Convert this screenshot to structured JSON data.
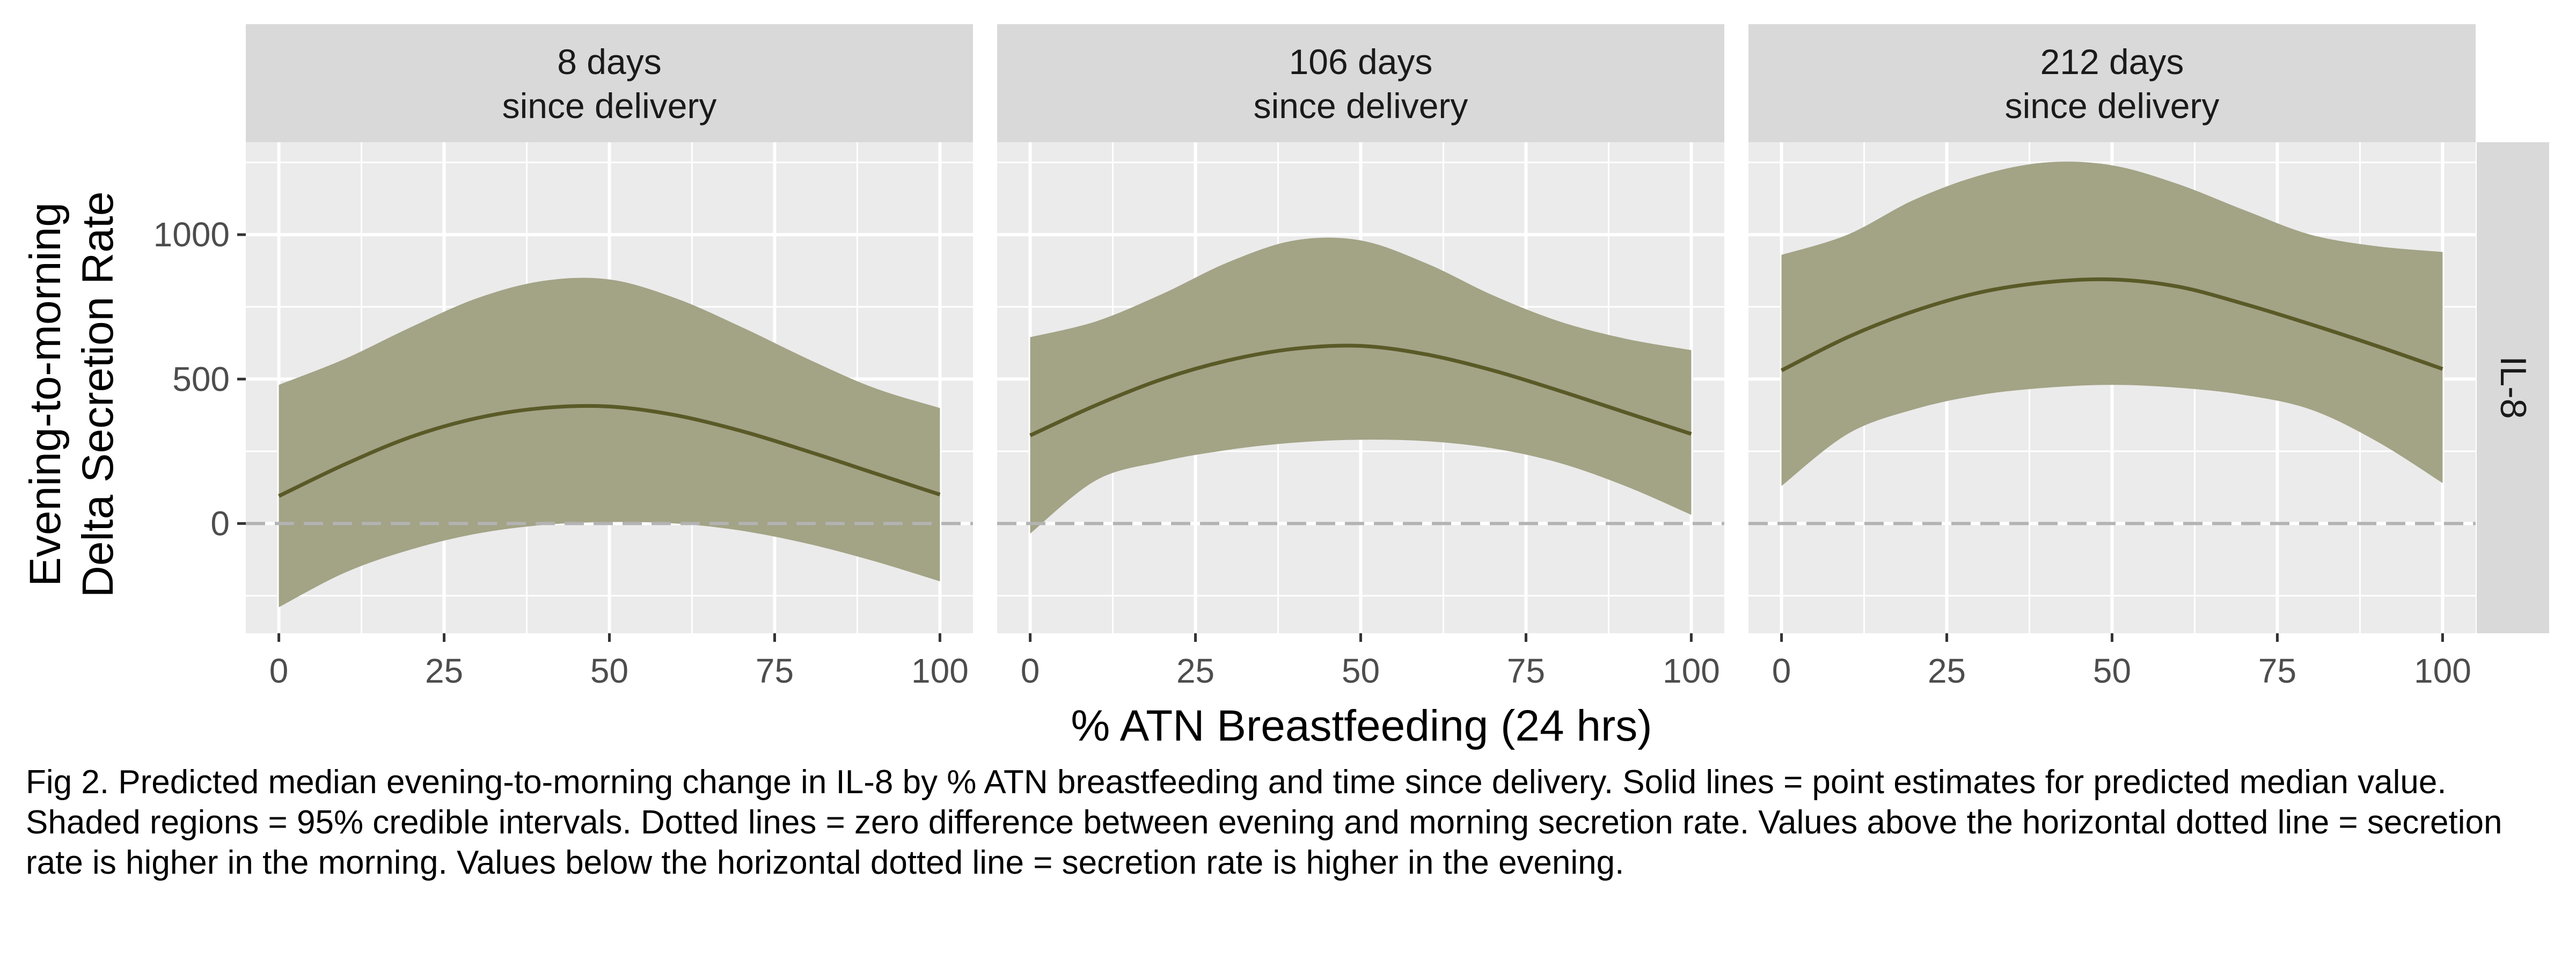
{
  "chart_data": {
    "type": "line",
    "facets": [
      {
        "label_line1": "8 days",
        "label_line2": "since delivery"
      },
      {
        "label_line1": "106 days",
        "label_line2": "since delivery"
      },
      {
        "label_line1": "212 days",
        "label_line2": "since delivery"
      }
    ],
    "row_strip": "IL-8",
    "xlabel": "% ATN Breastfeeding (24 hrs)",
    "ylabel_line1": "Evening-to-morning",
    "ylabel_line2": "Delta Secretion Rate",
    "x_ticks": [
      0,
      25,
      50,
      75,
      100
    ],
    "y_ticks": [
      0,
      500,
      1000
    ],
    "xlim": [
      -5,
      105
    ],
    "ylim": [
      -380,
      1320
    ],
    "reference_line_y": 0,
    "x": [
      0,
      10,
      20,
      30,
      40,
      50,
      60,
      70,
      80,
      90,
      100
    ],
    "series": [
      {
        "median": [
          95,
          205,
          300,
          365,
          400,
          405,
          375,
          320,
          250,
          175,
          100
        ],
        "lower": [
          -290,
          -170,
          -90,
          -35,
          -5,
          5,
          0,
          -25,
          -70,
          -130,
          -200
        ],
        "upper": [
          480,
          570,
          680,
          780,
          840,
          845,
          780,
          680,
          570,
          470,
          400
        ]
      },
      {
        "median": [
          305,
          410,
          500,
          565,
          605,
          615,
          585,
          530,
          460,
          385,
          310
        ],
        "lower": [
          -35,
          150,
          215,
          255,
          280,
          290,
          285,
          260,
          210,
          130,
          30
        ],
        "upper": [
          645,
          700,
          795,
          905,
          980,
          980,
          900,
          790,
          700,
          640,
          600
        ]
      },
      {
        "median": [
          530,
          645,
          735,
          800,
          835,
          845,
          820,
          760,
          690,
          615,
          535
        ],
        "lower": [
          130,
          310,
          395,
          445,
          470,
          480,
          470,
          445,
          395,
          285,
          140
        ],
        "upper": [
          930,
          1000,
          1120,
          1205,
          1250,
          1240,
          1175,
          1085,
          1000,
          960,
          940
        ]
      }
    ],
    "colors": {
      "line": "#5a5a28",
      "ribbon": "#a3a386",
      "panel_bg": "#ebebeb",
      "strip_bg": "#d9d9d9",
      "grid": "#ffffff",
      "reference": "#b3b3b3"
    }
  },
  "caption": "Fig 2. Predicted median evening-to-morning change in IL-8 by % ATN breastfeeding and time since delivery. Solid lines = point estimates for predicted median value. Shaded regions = 95% credible intervals. Dotted lines = zero difference between evening and morning secretion rate. Values above the horizontal dotted line = secretion rate is higher in the morning. Values below the horizontal dotted line = secretion rate is higher in the evening."
}
